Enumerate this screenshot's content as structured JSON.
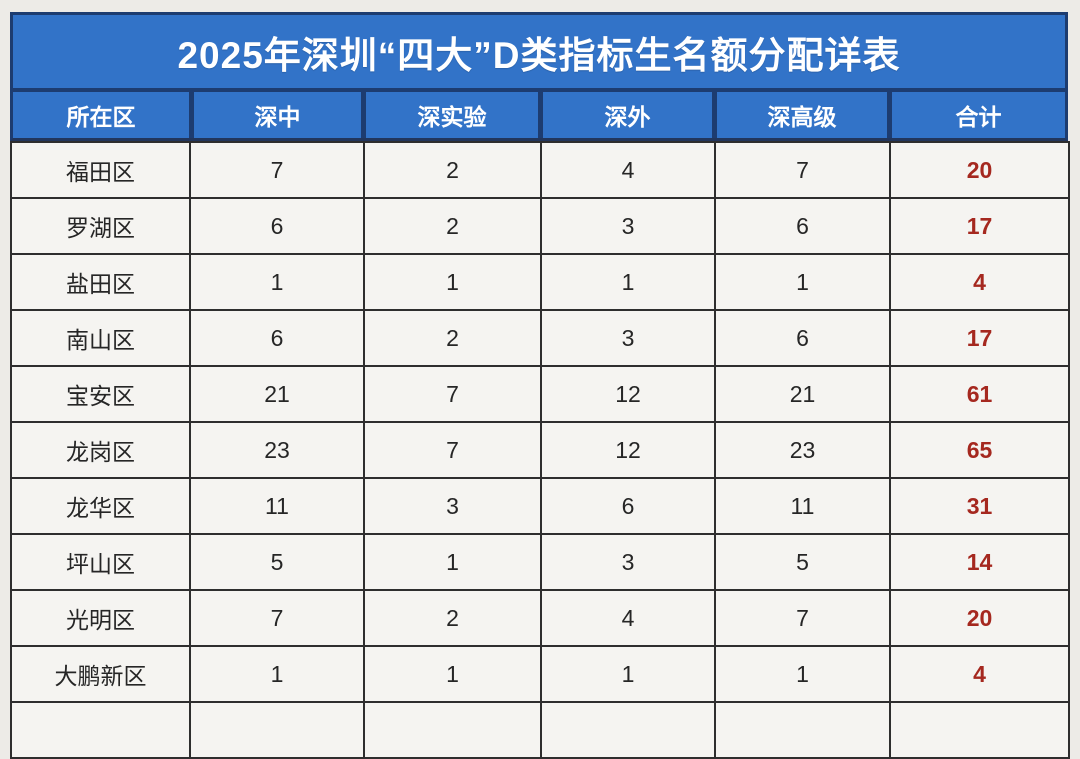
{
  "title": "2025年深圳“四大”D类指标生名额分配详表",
  "table": {
    "columns": [
      "所在区",
      "深中",
      "深实验",
      "深外",
      "深高级",
      "合计"
    ],
    "rows": [
      {
        "district": "福田区",
        "values": [
          "7",
          "2",
          "4",
          "7"
        ],
        "total": "20"
      },
      {
        "district": "罗湖区",
        "values": [
          "6",
          "2",
          "3",
          "6"
        ],
        "total": "17"
      },
      {
        "district": "盐田区",
        "values": [
          "1",
          "1",
          "1",
          "1"
        ],
        "total": "4"
      },
      {
        "district": "南山区",
        "values": [
          "6",
          "2",
          "3",
          "6"
        ],
        "total": "17"
      },
      {
        "district": "宝安区",
        "values": [
          "21",
          "7",
          "12",
          "21"
        ],
        "total": "61"
      },
      {
        "district": "龙岗区",
        "values": [
          "23",
          "7",
          "12",
          "23"
        ],
        "total": "65"
      },
      {
        "district": "龙华区",
        "values": [
          "11",
          "3",
          "6",
          "11"
        ],
        "total": "31"
      },
      {
        "district": "坪山区",
        "values": [
          "5",
          "1",
          "3",
          "5"
        ],
        "total": "14"
      },
      {
        "district": "光明区",
        "values": [
          "7",
          "2",
          "4",
          "7"
        ],
        "total": "20"
      },
      {
        "district": "大鹏新区",
        "values": [
          "1",
          "1",
          "1",
          "1"
        ],
        "total": "4"
      }
    ],
    "partial_next_row_visible": true
  },
  "colors": {
    "header_blue": "#3273c8",
    "header_border_navy": "#1d3c70",
    "cell_background": "#f5f4f1",
    "grid_line": "#2e2e2e",
    "total_red": "#a5281f",
    "page_background": "#edebe7",
    "header_text": "#ffffff",
    "body_text": "#262626"
  }
}
